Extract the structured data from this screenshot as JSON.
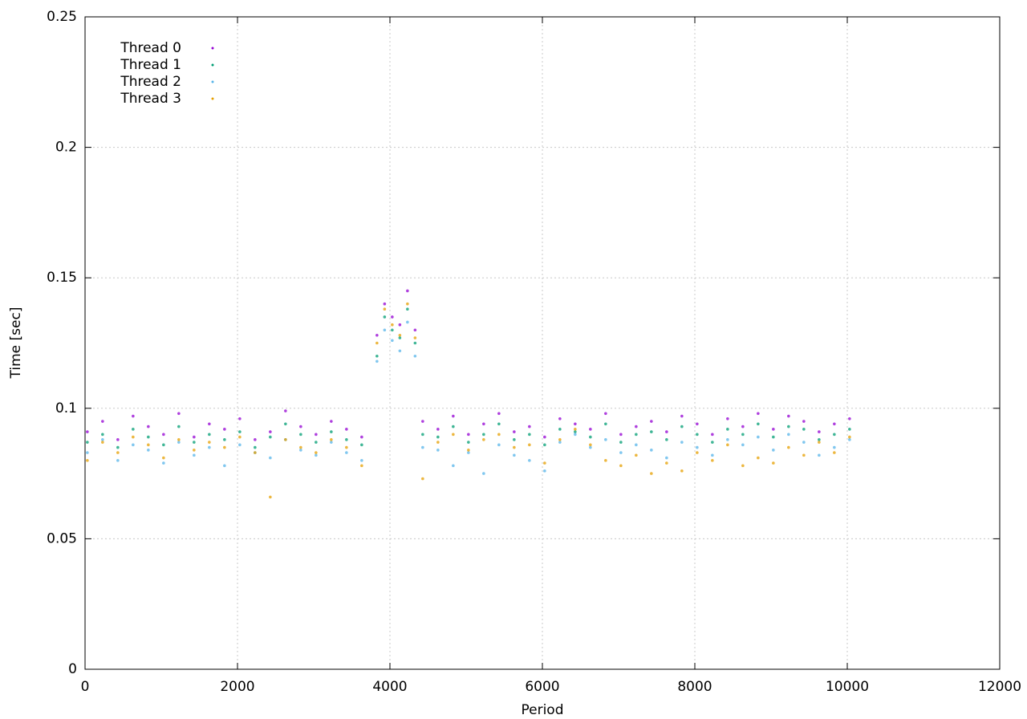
{
  "chart_data": {
    "type": "scatter",
    "x_label": "Period",
    "y_label": "Time [sec]",
    "xlim": [
      0,
      12000
    ],
    "xticks": [
      0,
      2000,
      4000,
      6000,
      8000,
      10000,
      12000
    ],
    "ylim": [
      0,
      0.25
    ],
    "yticks": [
      0,
      0.05,
      0.1,
      0.15,
      0.2,
      0.25
    ],
    "grid": true,
    "legend": "upper left",
    "x": [
      30,
      230,
      430,
      630,
      830,
      1030,
      1230,
      1430,
      1630,
      1830,
      2030,
      2230,
      2430,
      2630,
      2830,
      3030,
      3230,
      3430,
      3630,
      3830,
      3930,
      4030,
      4130,
      4230,
      4330,
      4430,
      4630,
      4830,
      5030,
      5230,
      5430,
      5630,
      5830,
      6030,
      6230,
      6430,
      6630,
      6830,
      7030,
      7230,
      7430,
      7630,
      7830,
      8030,
      8230,
      8430,
      8630,
      8830,
      9030,
      9230,
      9430,
      9630,
      9830,
      10030
    ],
    "series": [
      {
        "name": "Thread 0",
        "color": "#9400d3",
        "values": [
          0.091,
          0.095,
          0.088,
          0.097,
          0.093,
          0.09,
          0.098,
          0.089,
          0.094,
          0.092,
          0.096,
          0.088,
          0.091,
          0.099,
          0.093,
          0.09,
          0.095,
          0.092,
          0.089,
          0.128,
          0.14,
          0.135,
          0.132,
          0.145,
          0.13,
          0.095,
          0.092,
          0.097,
          0.09,
          0.094,
          0.098,
          0.091,
          0.093,
          0.089,
          0.096,
          0.094,
          0.092,
          0.098,
          0.09,
          0.093,
          0.095,
          0.091,
          0.097,
          0.094,
          0.09,
          0.096,
          0.093,
          0.098,
          0.092,
          0.097,
          0.095,
          0.091,
          0.094,
          0.096
        ]
      },
      {
        "name": "Thread 1",
        "color": "#009e73",
        "values": [
          0.087,
          0.09,
          0.085,
          0.092,
          0.089,
          0.086,
          0.093,
          0.087,
          0.09,
          0.088,
          0.091,
          0.085,
          0.089,
          0.094,
          0.09,
          0.087,
          0.091,
          0.088,
          0.086,
          0.12,
          0.135,
          0.13,
          0.127,
          0.138,
          0.125,
          0.09,
          0.089,
          0.093,
          0.087,
          0.09,
          0.094,
          0.088,
          0.09,
          0.086,
          0.092,
          0.091,
          0.089,
          0.094,
          0.087,
          0.09,
          0.091,
          0.088,
          0.093,
          0.09,
          0.087,
          0.092,
          0.09,
          0.094,
          0.089,
          0.093,
          0.092,
          0.088,
          0.09,
          0.092
        ]
      },
      {
        "name": "Thread 2",
        "color": "#56b4e9",
        "values": [
          0.083,
          0.088,
          0.08,
          0.086,
          0.084,
          0.079,
          0.087,
          0.082,
          0.085,
          0.078,
          0.086,
          0.083,
          0.081,
          0.088,
          0.084,
          0.082,
          0.087,
          0.083,
          0.08,
          0.118,
          0.13,
          0.126,
          0.122,
          0.133,
          0.12,
          0.085,
          0.084,
          0.078,
          0.083,
          0.075,
          0.086,
          0.082,
          0.08,
          0.076,
          0.087,
          0.09,
          0.085,
          0.088,
          0.083,
          0.086,
          0.084,
          0.081,
          0.087,
          0.085,
          0.082,
          0.088,
          0.086,
          0.089,
          0.084,
          0.09,
          0.087,
          0.082,
          0.085,
          0.088
        ]
      },
      {
        "name": "Thread 3",
        "color": "#e69f00",
        "values": [
          0.08,
          0.087,
          0.083,
          0.089,
          0.086,
          0.081,
          0.088,
          0.084,
          0.087,
          0.085,
          0.089,
          0.083,
          0.066,
          0.088,
          0.085,
          0.083,
          0.088,
          0.085,
          0.078,
          0.125,
          0.138,
          0.132,
          0.128,
          0.14,
          0.127,
          0.073,
          0.087,
          0.09,
          0.084,
          0.088,
          0.09,
          0.085,
          0.086,
          0.079,
          0.088,
          0.092,
          0.086,
          0.08,
          0.078,
          0.082,
          0.075,
          0.079,
          0.076,
          0.083,
          0.08,
          0.086,
          0.078,
          0.081,
          0.079,
          0.085,
          0.082,
          0.087,
          0.083,
          0.089
        ]
      }
    ]
  }
}
